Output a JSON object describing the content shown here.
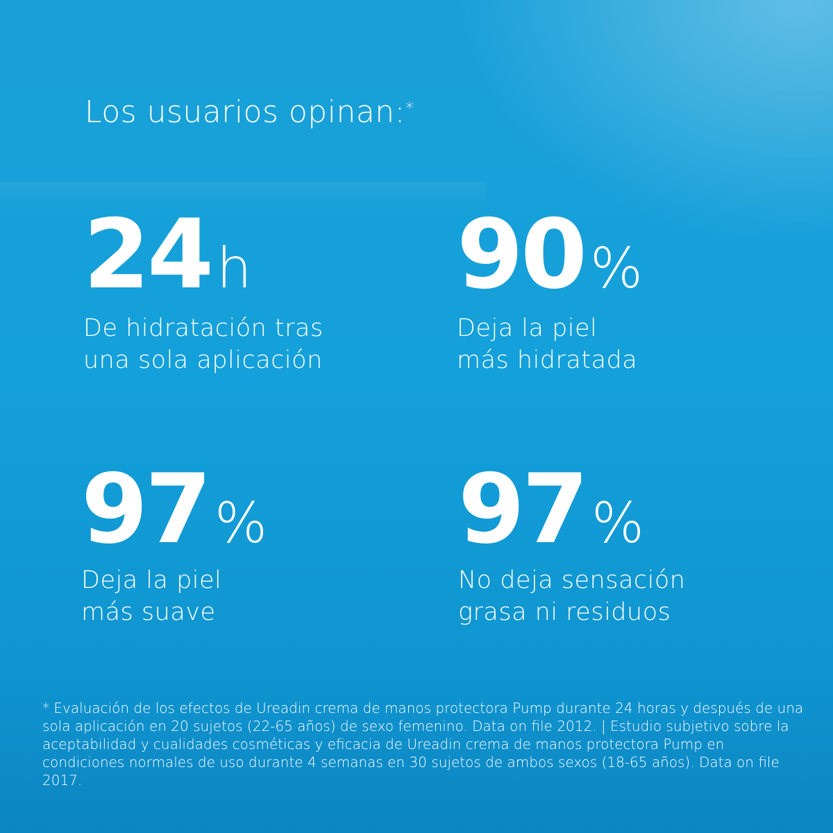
{
  "title": "Los usuarios opinan:",
  "title_mark": "*",
  "stats": [
    {
      "value": "24",
      "unit": "h",
      "lines": [
        "De hidratación tras",
        "una sola aplicación"
      ]
    },
    {
      "value": "90",
      "unit": "%",
      "lines": [
        "Deja la piel",
        "más hidratada"
      ]
    },
    {
      "value": "97",
      "unit": "%",
      "lines": [
        "Deja la piel",
        "más suave"
      ]
    },
    {
      "value": "97",
      "unit": "%",
      "lines": [
        "No deja sensación",
        "grasa ni residuos"
      ]
    }
  ],
  "footnote": "* Evaluación de los efectos de Ureadin crema de manos protectora Pump durante 24 horas y después de una sola aplicación en 20 sujetos (22-65 años) de sexo femenino. Data on file 2012. | Estudio subjetivo sobre la aceptabilidad y cualidades cosméticas y eficacia de Ureadin crema de manos protectora Pump en condiciones normales de uso durante 4 semanas en 30 sujetos de ambos sexos (18-65 años). Data on file 2017.",
  "colors": {
    "background": "#14a0da",
    "text": "#ffffff"
  }
}
